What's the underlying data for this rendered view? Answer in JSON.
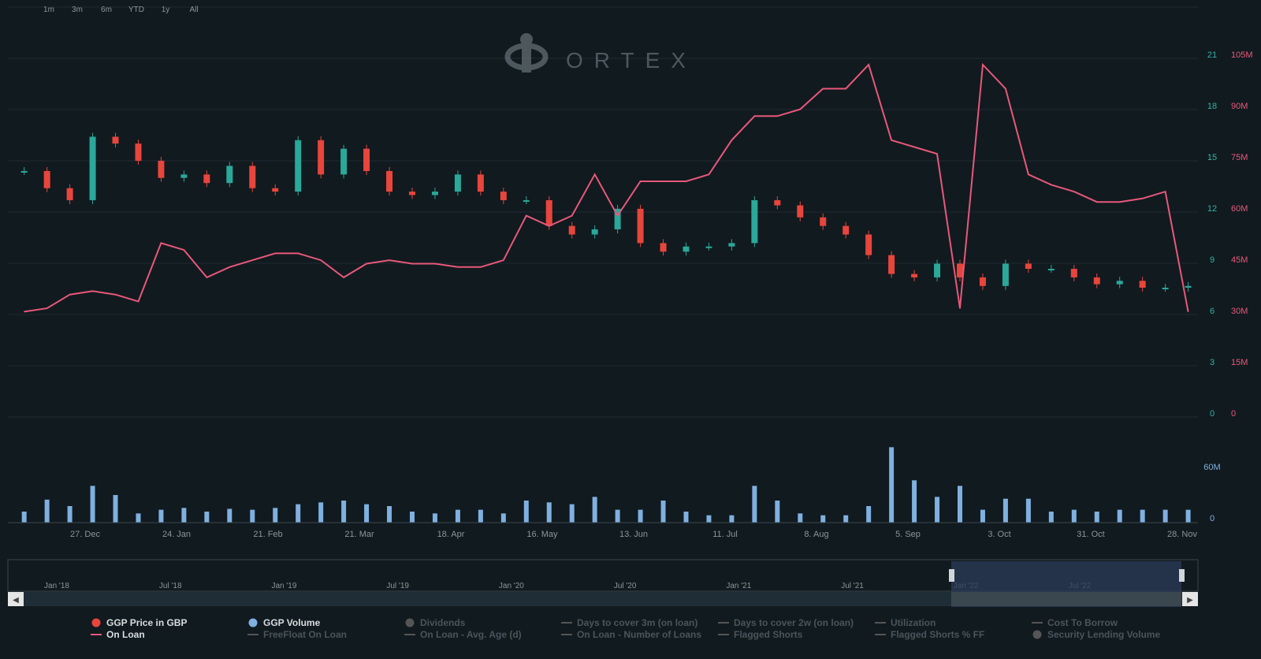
{
  "range_buttons": [
    "1m",
    "3m",
    "6m",
    "YTD",
    "1y",
    "All"
  ],
  "brand": "ORTEX",
  "colors": {
    "background": "#111a1f",
    "gridline": "#1e2a30",
    "on_loan": "#e8587a",
    "candle_up": "#2aa89a",
    "candle_down": "#e8453c",
    "volume": "#7fb0e0",
    "axis_text": "#8a959c",
    "price_axis": "#2fb5a5",
    "loan_axis": "#e8587a",
    "navigator_sel": "#2a3a55"
  },
  "axes": {
    "price_ticks": [
      "21",
      "18",
      "15",
      "12",
      "9",
      "6",
      "3",
      "0"
    ],
    "loan_ticks": [
      "105M",
      "90M",
      "75M",
      "60M",
      "45M",
      "30M",
      "15M",
      "0"
    ],
    "volume_ticks": [
      "60M",
      "0"
    ],
    "x_labels": [
      "27. Dec",
      "24. Jan",
      "21. Feb",
      "21. Mar",
      "18. Apr",
      "16. May",
      "13. Jun",
      "11. Jul",
      "8. Aug",
      "5. Sep",
      "3. Oct",
      "31. Oct",
      "28. Nov"
    ]
  },
  "navigator": {
    "labels": [
      "Jan '18",
      "Jul '18",
      "Jan '19",
      "Jul '19",
      "Jan '20",
      "Jul '20",
      "Jan '21",
      "Jul '21",
      "Jan '22",
      "Jul '22"
    ]
  },
  "legend": [
    {
      "label": "GGP Price in GBP",
      "marker": "dot",
      "color": "#e8453c",
      "active": true
    },
    {
      "label": "GGP Volume",
      "marker": "dot",
      "color": "#7fb0e0",
      "active": true
    },
    {
      "label": "Dividends",
      "marker": "dot",
      "color": "#555",
      "active": false
    },
    {
      "label": "Days to cover 3m (on loan)",
      "marker": "line",
      "color": "#555",
      "active": false
    },
    {
      "label": "Days to cover 2w (on loan)",
      "marker": "line",
      "color": "#555",
      "active": false
    },
    {
      "label": "Utilization",
      "marker": "line",
      "color": "#555",
      "active": false
    },
    {
      "label": "Cost To Borrow",
      "marker": "line",
      "color": "#555",
      "active": false
    },
    {
      "label": "On Loan",
      "marker": "line",
      "color": "#e8587a",
      "active": true
    },
    {
      "label": "FreeFloat On Loan",
      "marker": "line",
      "color": "#555",
      "active": false
    },
    {
      "label": "On Loan - Avg. Age (d)",
      "marker": "line",
      "color": "#555",
      "active": false
    },
    {
      "label": "On Loan - Number of Loans",
      "marker": "line",
      "color": "#555",
      "active": false
    },
    {
      "label": "Flagged Shorts",
      "marker": "line",
      "color": "#555",
      "active": false
    },
    {
      "label": "Flagged Shorts % FF",
      "marker": "line",
      "color": "#555",
      "active": false
    },
    {
      "label": "Security Lending Volume",
      "marker": "dot",
      "color": "#555",
      "active": false
    }
  ],
  "chart_data": {
    "type": "line",
    "x_range": [
      "Dec 2021",
      "Nov 2022"
    ],
    "price_axis": {
      "label": "GGP Price in GBP",
      "ylim": [
        0,
        21
      ]
    },
    "loan_axis": {
      "label": "On Loan",
      "ylim": [
        0,
        105000000
      ]
    },
    "volume_axis": {
      "label": "GGP Volume",
      "ylim": [
        0,
        60000000
      ]
    },
    "price_series": {
      "name": "GGP Price in GBP",
      "x": [
        "2021-12-06",
        "2021-12-13",
        "2021-12-20",
        "2021-12-27",
        "2022-01-03",
        "2022-01-10",
        "2022-01-17",
        "2022-01-24",
        "2022-01-31",
        "2022-02-07",
        "2022-02-14",
        "2022-02-21",
        "2022-02-28",
        "2022-03-07",
        "2022-03-14",
        "2022-03-21",
        "2022-03-28",
        "2022-04-04",
        "2022-04-11",
        "2022-04-18",
        "2022-04-25",
        "2022-05-02",
        "2022-05-09",
        "2022-05-16",
        "2022-05-23",
        "2022-05-30",
        "2022-06-06",
        "2022-06-13",
        "2022-06-20",
        "2022-06-27",
        "2022-07-04",
        "2022-07-11",
        "2022-07-18",
        "2022-07-25",
        "2022-08-01",
        "2022-08-08",
        "2022-08-15",
        "2022-08-22",
        "2022-08-29",
        "2022-09-05",
        "2022-09-12",
        "2022-09-19",
        "2022-09-26",
        "2022-10-03",
        "2022-10-10",
        "2022-10-17",
        "2022-10-24",
        "2022-10-31",
        "2022-11-07",
        "2022-11-14",
        "2022-11-21",
        "2022-11-28"
      ],
      "y": [
        14.2,
        13.2,
        12.5,
        16.2,
        15.8,
        14.8,
        13.8,
        14.0,
        13.5,
        14.5,
        13.2,
        13.0,
        16.0,
        14.0,
        15.5,
        14.2,
        13.0,
        12.8,
        13.0,
        14.0,
        13.0,
        12.5,
        12.5,
        11.0,
        10.5,
        10.8,
        12.0,
        10.0,
        9.5,
        9.8,
        9.8,
        10.0,
        12.5,
        12.2,
        11.5,
        11.0,
        10.5,
        9.3,
        8.2,
        8.0,
        8.8,
        8.0,
        7.5,
        8.8,
        8.5,
        8.5,
        8.0,
        7.6,
        7.8,
        7.4,
        7.4,
        7.5
      ]
    },
    "on_loan_series": {
      "name": "On Loan",
      "x": [
        "2021-12-06",
        "2021-12-13",
        "2021-12-20",
        "2021-12-27",
        "2022-01-03",
        "2022-01-10",
        "2022-01-17",
        "2022-01-24",
        "2022-01-31",
        "2022-02-07",
        "2022-02-14",
        "2022-02-21",
        "2022-02-28",
        "2022-03-07",
        "2022-03-14",
        "2022-03-21",
        "2022-03-28",
        "2022-04-04",
        "2022-04-11",
        "2022-04-18",
        "2022-04-25",
        "2022-05-02",
        "2022-05-09",
        "2022-05-16",
        "2022-05-23",
        "2022-05-30",
        "2022-06-06",
        "2022-06-13",
        "2022-06-20",
        "2022-06-27",
        "2022-07-04",
        "2022-07-11",
        "2022-07-18",
        "2022-07-25",
        "2022-08-01",
        "2022-08-08",
        "2022-08-15",
        "2022-08-22",
        "2022-08-29",
        "2022-09-05",
        "2022-09-12",
        "2022-09-19",
        "2022-09-26",
        "2022-10-03",
        "2022-10-10",
        "2022-10-17",
        "2022-10-24",
        "2022-10-31",
        "2022-11-07",
        "2022-11-14",
        "2022-11-21",
        "2022-11-28"
      ],
      "y": [
        30000000,
        31000000,
        35000000,
        36000000,
        35000000,
        33000000,
        50000000,
        48000000,
        40000000,
        43000000,
        45000000,
        47000000,
        47000000,
        45000000,
        40000000,
        44000000,
        45000000,
        44000000,
        44000000,
        43000000,
        43000000,
        45000000,
        58000000,
        55000000,
        58000000,
        70000000,
        58000000,
        68000000,
        68000000,
        68000000,
        70000000,
        80000000,
        87000000,
        87000000,
        89000000,
        95000000,
        95000000,
        102000000,
        80000000,
        78000000,
        76000000,
        31000000,
        102000000,
        95000000,
        70000000,
        67000000,
        65000000,
        62000000,
        62000000,
        63000000,
        65000000,
        30000000
      ]
    },
    "volume_series": {
      "name": "GGP Volume",
      "x": [
        "2021-12-06",
        "2021-12-13",
        "2021-12-20",
        "2021-12-27",
        "2022-01-03",
        "2022-01-10",
        "2022-01-17",
        "2022-01-24",
        "2022-01-31",
        "2022-02-07",
        "2022-02-14",
        "2022-02-21",
        "2022-02-28",
        "2022-03-07",
        "2022-03-14",
        "2022-03-21",
        "2022-03-28",
        "2022-04-04",
        "2022-04-11",
        "2022-04-18",
        "2022-04-25",
        "2022-05-02",
        "2022-05-09",
        "2022-05-16",
        "2022-05-23",
        "2022-05-30",
        "2022-06-06",
        "2022-06-13",
        "2022-06-20",
        "2022-06-27",
        "2022-07-04",
        "2022-07-11",
        "2022-07-18",
        "2022-07-25",
        "2022-08-01",
        "2022-08-08",
        "2022-08-15",
        "2022-08-22",
        "2022-08-29",
        "2022-09-05",
        "2022-09-12",
        "2022-09-19",
        "2022-09-26",
        "2022-10-03",
        "2022-10-10",
        "2022-10-17",
        "2022-10-24",
        "2022-10-31",
        "2022-11-07",
        "2022-11-14",
        "2022-11-21",
        "2022-11-28"
      ],
      "y": [
        12000000,
        25000000,
        18000000,
        40000000,
        30000000,
        10000000,
        14000000,
        16000000,
        12000000,
        15000000,
        14000000,
        16000000,
        20000000,
        22000000,
        24000000,
        20000000,
        18000000,
        12000000,
        10000000,
        14000000,
        14000000,
        10000000,
        24000000,
        22000000,
        20000000,
        28000000,
        14000000,
        14000000,
        24000000,
        12000000,
        8000000,
        8000000,
        40000000,
        24000000,
        10000000,
        8000000,
        8000000,
        18000000,
        82000000,
        46000000,
        28000000,
        40000000,
        14000000,
        26000000,
        26000000,
        12000000,
        14000000,
        12000000,
        14000000,
        14000000,
        14000000,
        14000000
      ]
    }
  }
}
